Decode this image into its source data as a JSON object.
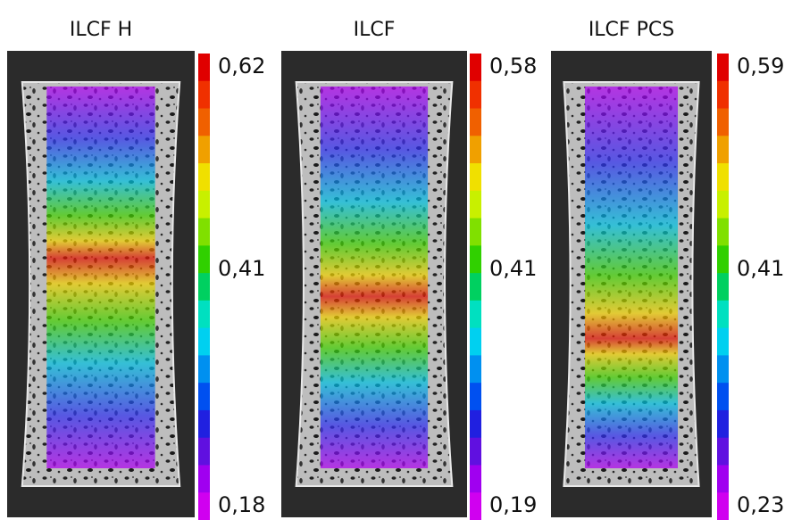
{
  "panels": [
    {
      "title": "ILCF H",
      "scale": {
        "max": "0,62",
        "mid": "0,41",
        "min": "0,18"
      }
    },
    {
      "title": "ILCF",
      "scale": {
        "max": "0,58",
        "mid": "0,41",
        "min": "0,19"
      }
    },
    {
      "title": "ILCF PCS",
      "scale": {
        "max": "0,59",
        "mid": "0,41",
        "min": "0,23"
      }
    }
  ]
}
